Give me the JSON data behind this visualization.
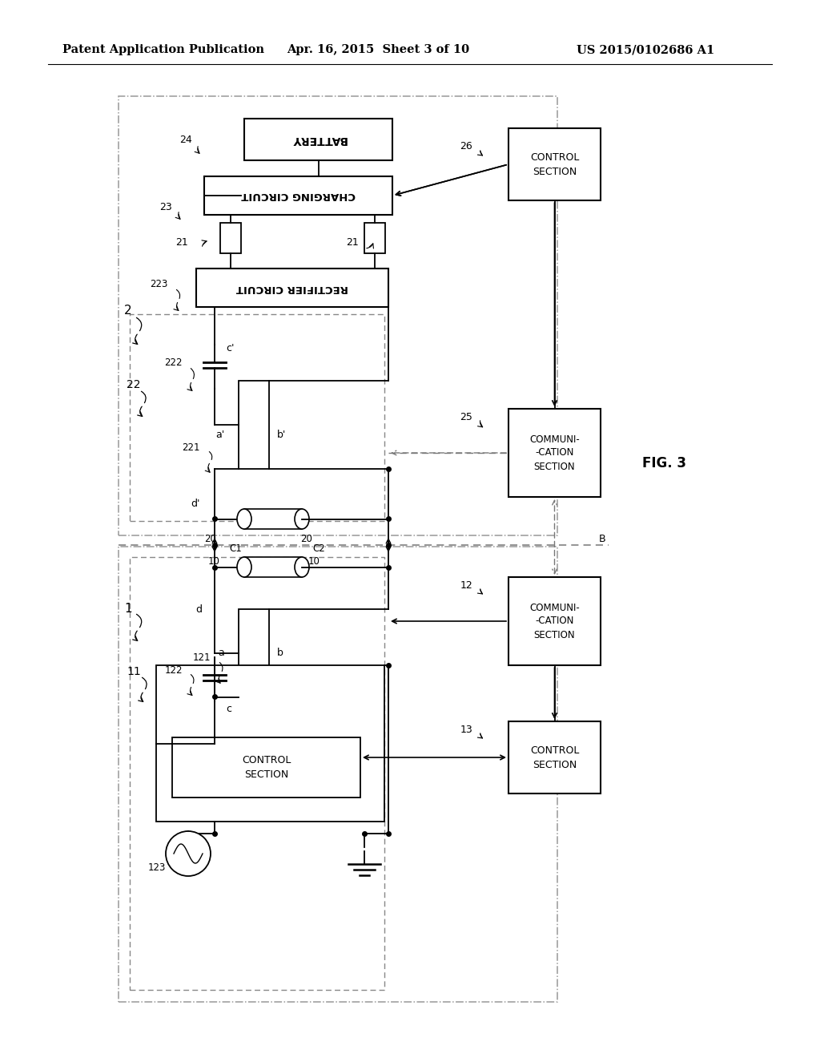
{
  "bg_color": "#ffffff",
  "header_left": "Patent Application Publication",
  "header_mid": "Apr. 16, 2015  Sheet 3 of 10",
  "header_right": "US 2015/0102686 A1",
  "fig_label": "FIG. 3",
  "line_color": "#000000",
  "dash_color": "#777777"
}
